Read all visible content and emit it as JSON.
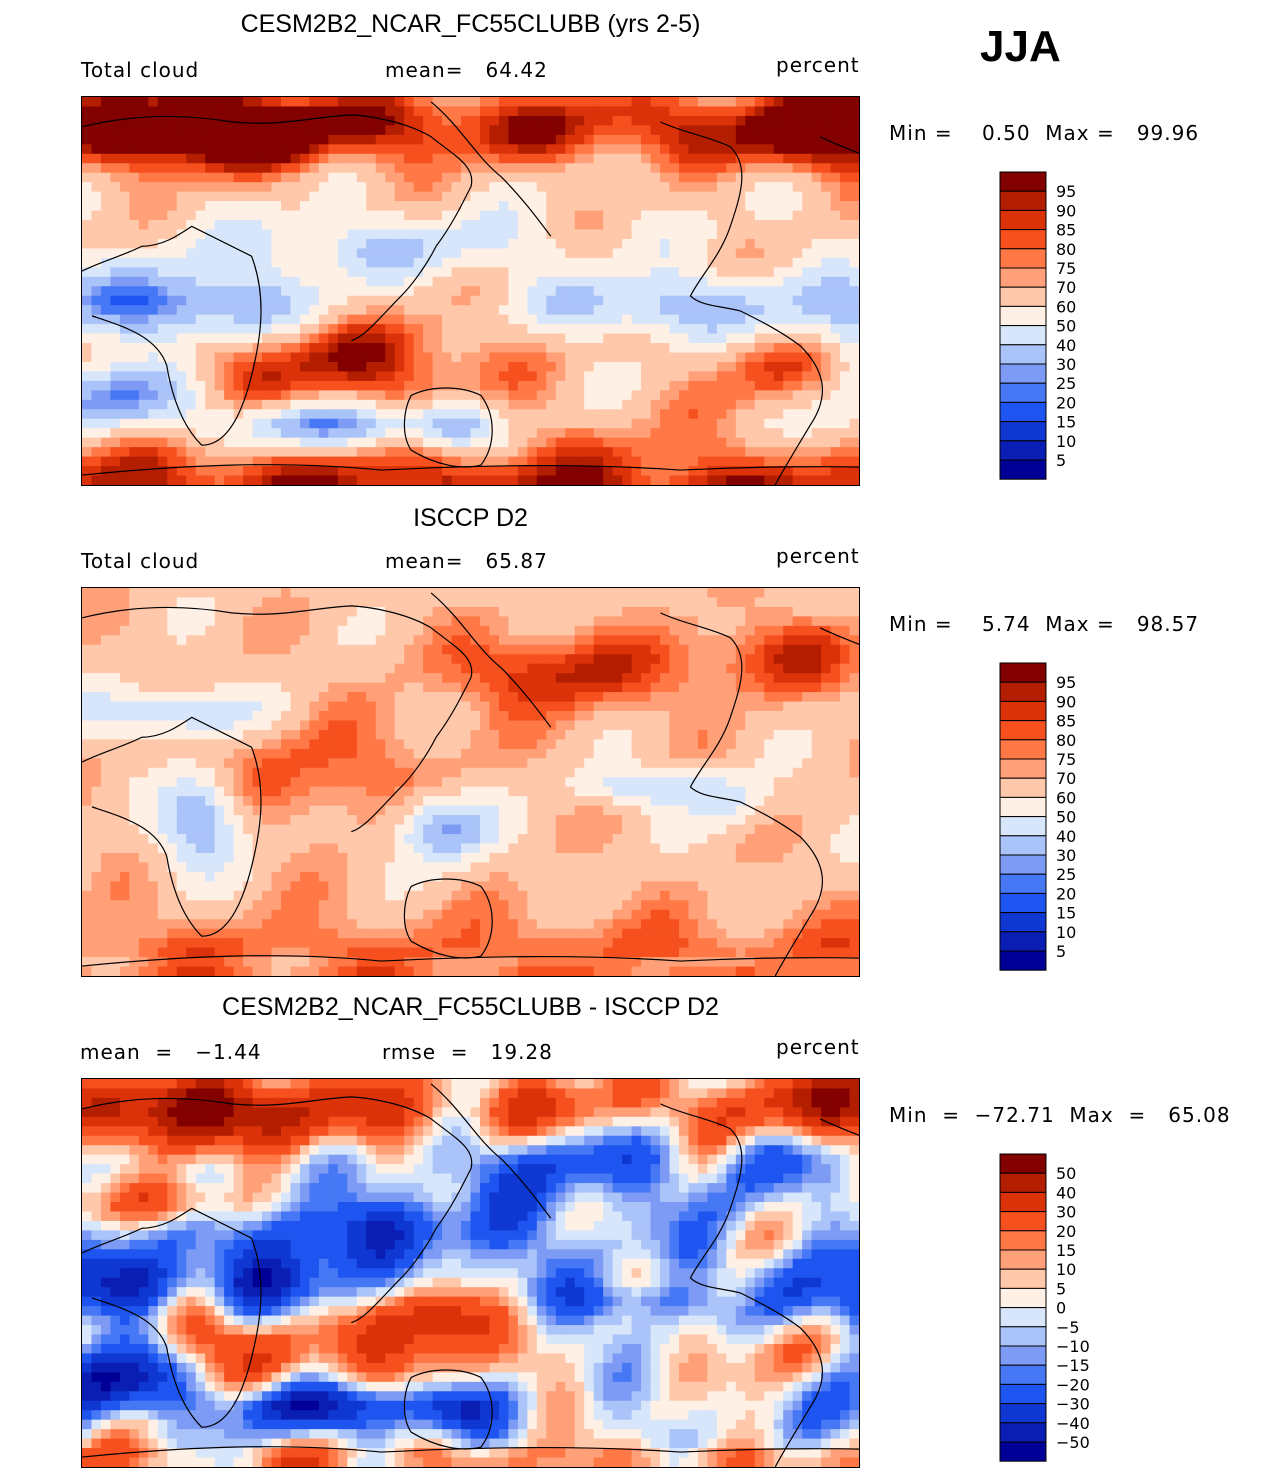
{
  "season": "JJA",
  "colors": {
    "abs_palette": [
      "#000096",
      "#0a1eb4",
      "#0f37d2",
      "#1e55f0",
      "#4678f5",
      "#7d9bf5",
      "#aac3f8",
      "#d7e6fa",
      "#fff0e6",
      "#ffc8aa",
      "#ffa078",
      "#ff7846",
      "#f5501e",
      "#dc320a",
      "#b41e00",
      "#820000"
    ],
    "diff_palette": [
      "#000096",
      "#0a1eb4",
      "#0f37d2",
      "#1e55f0",
      "#4678f5",
      "#7d9bf5",
      "#aac3f8",
      "#d7e6fa",
      "#fff0e6",
      "#ffc8aa",
      "#ffa078",
      "#ff7846",
      "#f5501e",
      "#dc320a",
      "#b41e00",
      "#820000"
    ],
    "coastline": "#000000"
  },
  "panels": [
    {
      "id": "model",
      "title": "CESM2B2_NCAR_FC55CLUBB (yrs 2-5)",
      "left_label": "Total cloud",
      "center_label": "mean=   64.42",
      "right_label": "percent",
      "minmax_label": "Min =    0.50  Max =   99.96",
      "field": "model"
    },
    {
      "id": "obs",
      "title": "ISCCP D2",
      "left_label": "Total cloud",
      "center_label": "mean=   65.87",
      "right_label": "percent",
      "minmax_label": "Min =    5.74  Max =   98.57",
      "field": "obs"
    },
    {
      "id": "diff",
      "title": "CESM2B2_NCAR_FC55CLUBB - ISCCP D2",
      "left_label": "mean  =   −1.44",
      "center_label": "rmse  =   19.28",
      "right_label": "percent",
      "minmax_label": "Min  =  −72.71  Max  =   65.08",
      "field": "diff"
    }
  ],
  "chart_data": [
    {
      "type": "heatmap",
      "title": "CESM2B2_NCAR_FC55CLUBB (yrs 2-5)",
      "variable": "Total cloud",
      "units": "percent",
      "mean": 64.42,
      "min": 0.5,
      "max": 99.96,
      "contour_levels": [
        5,
        10,
        15,
        20,
        25,
        30,
        40,
        50,
        60,
        70,
        75,
        80,
        85,
        90,
        95
      ],
      "colorbar_labels": [
        "95",
        "90",
        "85",
        "80",
        "75",
        "70",
        "60",
        "50",
        "40",
        "30",
        "25",
        "20",
        "15",
        "10",
        "5"
      ]
    },
    {
      "type": "heatmap",
      "title": "ISCCP D2",
      "variable": "Total cloud",
      "units": "percent",
      "mean": 65.87,
      "min": 5.74,
      "max": 98.57,
      "contour_levels": [
        5,
        10,
        15,
        20,
        25,
        30,
        40,
        50,
        60,
        70,
        75,
        80,
        85,
        90,
        95
      ],
      "colorbar_labels": [
        "95",
        "90",
        "85",
        "80",
        "75",
        "70",
        "60",
        "50",
        "40",
        "30",
        "25",
        "20",
        "15",
        "10",
        "5"
      ]
    },
    {
      "type": "heatmap",
      "title": "CESM2B2_NCAR_FC55CLUBB - ISCCP D2",
      "units": "percent",
      "mean": -1.44,
      "rmse": 19.28,
      "min": -72.71,
      "max": 65.08,
      "contour_levels": [
        -50,
        -40,
        -30,
        -20,
        -15,
        -10,
        -5,
        0,
        5,
        10,
        15,
        20,
        30,
        40,
        50
      ],
      "colorbar_labels": [
        "50",
        "40",
        "30",
        "20",
        "15",
        "10",
        "5",
        "0",
        "−5",
        "−10",
        "−15",
        "−20",
        "−30",
        "−40",
        "−50"
      ]
    }
  ]
}
